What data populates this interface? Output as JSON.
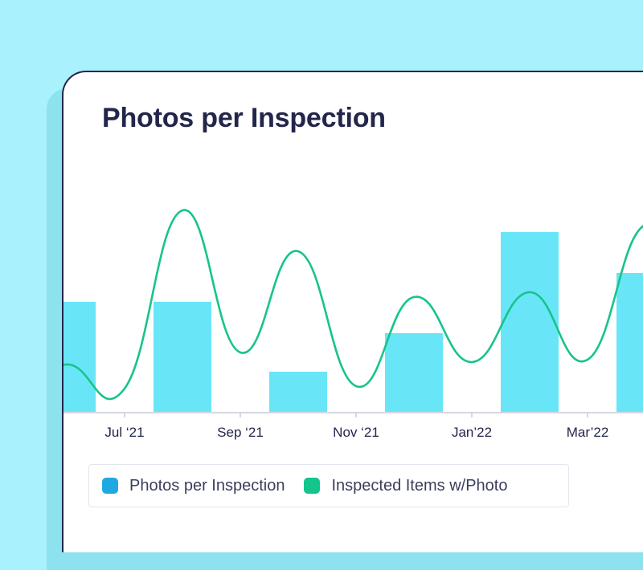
{
  "card": {
    "title": "Photos per Inspection"
  },
  "colors": {
    "background": "#a8f1fd",
    "bar": "#68e6f8",
    "line": "#17c48a",
    "legend_bar_swatch": "#20a9e0"
  },
  "legend": [
    {
      "label": "Photos per Inspection",
      "swatch": "#20a9e0"
    },
    {
      "label": "Inspected Items w/Photo",
      "swatch": "#13c58a"
    }
  ],
  "chart_data": {
    "type": "bar",
    "x_tick_labels": [
      "Jul ‘21",
      "Sep ‘21",
      "Nov ‘21",
      "Jan’22",
      "Mar’22"
    ],
    "bars": {
      "name": "Photos per Inspection",
      "positions": [
        0,
        1,
        2,
        3,
        4,
        5
      ],
      "values": [
        4.6,
        4.6,
        1.7,
        3.3,
        7.5,
        5.8
      ]
    },
    "line": {
      "name": "Inspected Items w/Photo",
      "x": [
        -0.5,
        0,
        0.5,
        1,
        1.5,
        2,
        2.5,
        3,
        3.5,
        4,
        4.5,
        5,
        5.5
      ],
      "values": [
        0.8,
        2.0,
        1.0,
        8.4,
        2.5,
        6.7,
        1.1,
        4.8,
        2.1,
        5.0,
        2.2,
        7.8,
        4.3
      ]
    },
    "ylim": [
      0,
      10
    ],
    "grid": false,
    "legend_position": "bottom"
  }
}
